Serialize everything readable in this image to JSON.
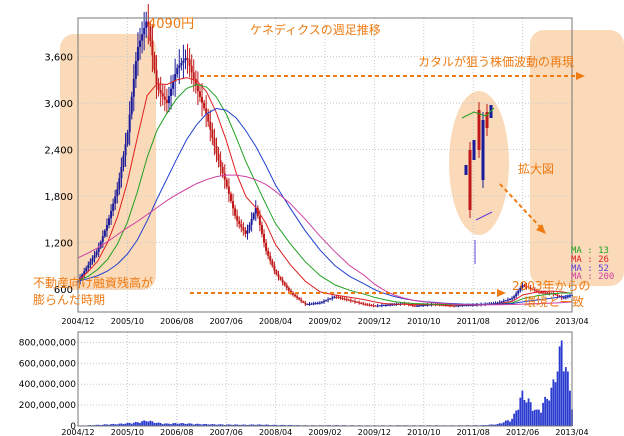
{
  "chart_data": {
    "type": "line",
    "title": "ケネディクスの週足推移",
    "x_ticks": [
      "2004/12",
      "2005/10",
      "2006/08",
      "2007/06",
      "2008/04",
      "2009/02",
      "2009/12",
      "2010/10",
      "2011/08",
      "2012/06",
      "2013/04"
    ],
    "y_ticks": [
      "600",
      "1,200",
      "1,800",
      "2,400",
      "3,000",
      "3,600"
    ],
    "y_tick_values": [
      600,
      1200,
      1800,
      2400,
      3000,
      3600
    ],
    "ylim": [
      300,
      4100
    ],
    "volume_ticks": [
      "0",
      "200,000,000",
      "400,000,000",
      "600,000,000",
      "800,000,000"
    ],
    "volume_tick_values": [
      0,
      200000000,
      400000000,
      600000000,
      800000000
    ],
    "volume_ylim": [
      0,
      900000000
    ],
    "grid": true,
    "x_values": [
      0,
      0.2,
      0.4,
      0.6,
      0.8,
      1.0,
      1.2,
      1.4,
      1.6,
      1.8,
      2.0,
      2.2,
      2.4,
      2.6,
      2.8,
      3.0,
      3.2,
      3.4,
      3.6,
      3.8,
      4.0,
      4.3,
      4.6,
      4.9,
      5.2,
      5.5,
      5.8,
      6.0,
      6.2,
      6.4,
      6.6,
      6.8,
      7.0,
      7.2,
      7.4,
      7.6,
      7.8,
      8.0,
      8.2,
      8.5,
      8.8,
      9.0,
      9.3,
      9.6,
      9.8,
      10.0
    ],
    "price": [
      700,
      900,
      1100,
      1450,
      1900,
      2600,
      3700,
      4090,
      3200,
      3000,
      3450,
      3600,
      3200,
      2850,
      2350,
      1950,
      1500,
      1300,
      1650,
      1100,
      800,
      550,
      400,
      420,
      500,
      450,
      400,
      380,
      390,
      400,
      410,
      380,
      390,
      400,
      390,
      380,
      390,
      390,
      400,
      420,
      480,
      650,
      560,
      540,
      480,
      520
    ],
    "volume": [
      5000000,
      8000000,
      12000000,
      18000000,
      22000000,
      30000000,
      40000000,
      60000000,
      35000000,
      25000000,
      30000000,
      28000000,
      22000000,
      20000000,
      18000000,
      16000000,
      15000000,
      14000000,
      16000000,
      14000000,
      12000000,
      10000000,
      8000000,
      8000000,
      9000000,
      8000000,
      7000000,
      7000000,
      7000000,
      8000000,
      8000000,
      7000000,
      7000000,
      8000000,
      7000000,
      7000000,
      8000000,
      8000000,
      9000000,
      20000000,
      80000000,
      350000000,
      150000000,
      400000000,
      900000000,
      250000000
    ],
    "series": [
      {
        "name": "MA : 13",
        "color": "#e02020",
        "values": [
          700,
          820,
          960,
          1200,
          1530,
          1980,
          2550,
          3100,
          3250,
          3240,
          3300,
          3330,
          3290,
          3150,
          2880,
          2520,
          2100,
          1790,
          1650,
          1450,
          1170,
          910,
          700,
          560,
          520,
          490,
          460,
          430,
          410,
          400,
          400,
          395,
          395,
          395,
          392,
          390,
          390,
          392,
          395,
          405,
          440,
          520,
          560,
          570,
          560,
          540
        ]
      },
      {
        "name": "MA : 26",
        "color": "#20a020",
        "values": [
          700,
          760,
          850,
          980,
          1180,
          1460,
          1850,
          2300,
          2650,
          2870,
          3060,
          3190,
          3240,
          3210,
          3080,
          2860,
          2560,
          2240,
          1970,
          1700,
          1440,
          1180,
          950,
          770,
          650,
          580,
          530,
          490,
          460,
          435,
          420,
          410,
          405,
          400,
          398,
          395,
          393,
          393,
          395,
          400,
          420,
          470,
          510,
          535,
          545,
          545
        ]
      },
      {
        "name": "MA : 52",
        "color": "#2040d0",
        "values": [
          700,
          730,
          770,
          830,
          920,
          1050,
          1230,
          1480,
          1760,
          2020,
          2280,
          2530,
          2720,
          2860,
          2930,
          2910,
          2810,
          2640,
          2440,
          2200,
          1940,
          1640,
          1350,
          1100,
          900,
          760,
          660,
          590,
          540,
          500,
          470,
          450,
          435,
          425,
          415,
          408,
          402,
          400,
          400,
          402,
          410,
          430,
          455,
          480,
          500,
          515
        ]
      },
      {
        "name": "MA : 200",
        "color": "#d040a0",
        "values": [
          1000,
          1060,
          1130,
          1210,
          1300,
          1390,
          1470,
          1560,
          1650,
          1740,
          1820,
          1890,
          1960,
          2010,
          2050,
          2070,
          2070,
          2050,
          2010,
          1950,
          1860,
          1700,
          1500,
          1280,
          1080,
          900,
          770,
          660,
          580,
          520,
          480,
          450,
          430,
          420,
          410,
          400,
          395,
          393,
          393,
          394,
          397,
          402,
          408,
          415,
          422,
          430
        ]
      }
    ]
  },
  "annotations": {
    "peak": "4090円",
    "title": "ケネディクスの週足推移",
    "target": "カタルが狙う株価波動の再現",
    "zoom": "拡大図",
    "bubble_line1": "不動産向け融資残高が",
    "bubble_line2": "膨らんだ時期",
    "env_line1": "2003年からの",
    "env_line2": "環境と一致"
  },
  "colors": {
    "annotation": "#ee7a12",
    "highlight": "#f9d3ad",
    "up_candle": "#1a1a9a",
    "down_candle": "#c01818",
    "volume_bar": "#2a3bd0",
    "grid": "#c8c8c8"
  }
}
